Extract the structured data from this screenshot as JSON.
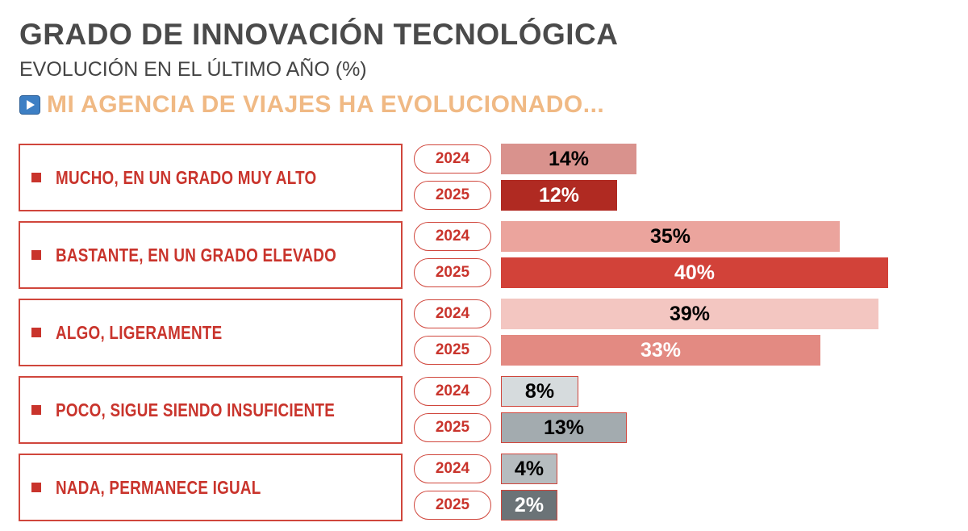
{
  "title": "GRADO DE INNOVACIÓN TECNOLÓGICA",
  "subtitle": "EVOLUCIÓN EN EL ÚLTIMO AÑO  (%)",
  "banner": {
    "icon": "play-icon",
    "text": "MI AGENCIA DE VIAJES HA EVOLUCIONADO..."
  },
  "chart_data": {
    "type": "bar",
    "orientation": "horizontal",
    "categories": [
      "MUCHO, EN UN GRADO MUY ALTO",
      "BASTANTE, EN UN GRADO ELEVADO",
      "ALGO, LIGERAMENTE",
      "POCO, SIGUE SIENDO INSUFICIENTE",
      "NADA, PERMANECE IGUAL"
    ],
    "series": [
      {
        "name": "2024",
        "values": [
          14,
          35,
          39,
          8,
          4
        ]
      },
      {
        "name": "2025",
        "values": [
          12,
          40,
          33,
          13,
          2
        ]
      }
    ],
    "value_labels": [
      [
        "14%",
        "12%"
      ],
      [
        "35%",
        "40%"
      ],
      [
        "39%",
        "33%"
      ],
      [
        "8%",
        "13%"
      ],
      [
        "4%",
        "2%"
      ]
    ],
    "colors": [
      [
        "#d9928d",
        "#b02a22"
      ],
      [
        "#eba49d",
        "#d24239"
      ],
      [
        "#f3c6c1",
        "#e38a82"
      ],
      [
        "#d6dbdd",
        "#a3abaf"
      ],
      [
        "#b6bcbf",
        "#6b7377"
      ]
    ],
    "label_colors": [
      [
        "#000000",
        "#ffffff"
      ],
      [
        "#000000",
        "#ffffff"
      ],
      [
        "#000000",
        "#ffffff"
      ],
      [
        "#000000",
        "#000000"
      ],
      [
        "#000000",
        "#ffffff"
      ]
    ],
    "xlim": [
      0,
      40
    ]
  }
}
